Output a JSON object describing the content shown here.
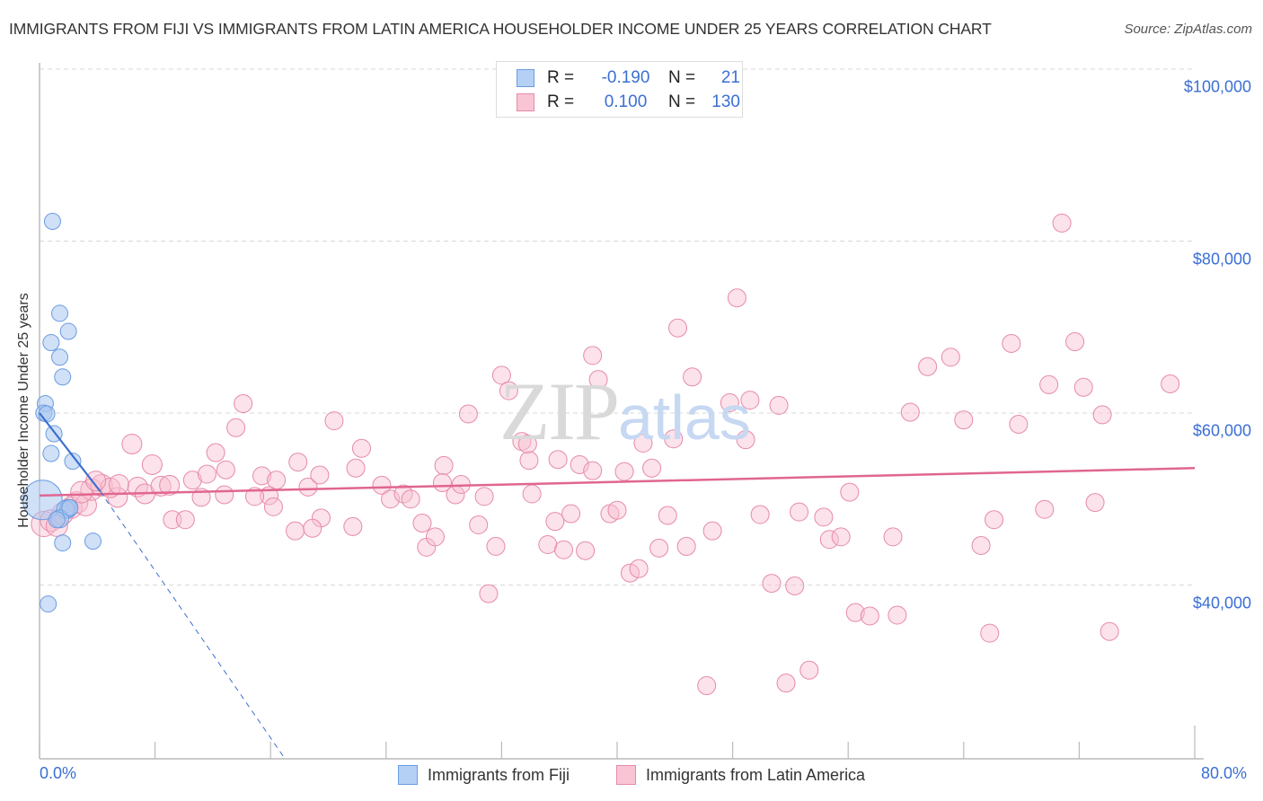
{
  "header": {
    "title": "IMMIGRANTS FROM FIJI VS IMMIGRANTS FROM LATIN AMERICA HOUSEHOLDER INCOME UNDER 25 YEARS CORRELATION CHART",
    "source": "Source: ZipAtlas.com"
  },
  "watermark": {
    "zip": "ZIP",
    "atlas": "atlas"
  },
  "stats_box": {
    "rows": [
      {
        "r_label": "R =",
        "r_value": "-0.190",
        "n_label": "N =",
        "n_value": "21",
        "color": "#b5d0f5",
        "border": "#6a9ce0"
      },
      {
        "r_label": "R =",
        "r_value": "0.100",
        "n_label": "N =",
        "n_value": "130",
        "color": "#f9c5d5",
        "border": "#e88aa8"
      }
    ]
  },
  "legend": {
    "items": [
      {
        "label": "Immigrants from Fiji",
        "color": "#b5d0f5",
        "border": "#6a9ce0"
      },
      {
        "label": "Immigrants from Latin America",
        "color": "#f9c5d5",
        "border": "#e88aa8"
      }
    ]
  },
  "colors": {
    "fiji_fill": "rgba(168,198,240,0.55)",
    "fiji_stroke": "#6a9ce0",
    "fiji_line": "#3a6fcf",
    "latam_fill": "rgba(248,190,208,0.45)",
    "latam_stroke": "#e68aa8",
    "latam_line": "#e06690",
    "axis_text": "#3b6fd4",
    "grid": "#d8d8d8"
  },
  "chart_data": {
    "type": "scatter",
    "title": "IMMIGRANTS FROM FIJI VS IMMIGRANTS FROM LATIN AMERICA HOUSEHOLDER INCOME UNDER 25 YEARS CORRELATION CHART",
    "xlabel": "",
    "ylabel": "Householder Income Under 25 years",
    "xlim": [
      0,
      80
    ],
    "ylim": [
      19800,
      102000
    ],
    "x_tick_labels": [
      "0.0%",
      "80.0%"
    ],
    "x_ticks": [
      0,
      8,
      16,
      24,
      32,
      40,
      48,
      56,
      64,
      72,
      80
    ],
    "y_ticks": [
      40000,
      60000,
      80000,
      100000
    ],
    "y_tick_labels": [
      "$40,000",
      "$60,000",
      "$80,000",
      "$100,000"
    ],
    "grid": true,
    "legend_position": "bottom",
    "series": [
      {
        "name": "Immigrants from Fiji",
        "r": -0.19,
        "n": 21,
        "trend": {
          "x0": 0,
          "y0": 60000,
          "x1": 4.2,
          "y1": 50900,
          "dashed_to_x": 17,
          "dashed_to_y": 19800
        },
        "points": [
          {
            "x": 0.9,
            "y": 82300,
            "s": 9
          },
          {
            "x": 1.4,
            "y": 71600,
            "s": 9
          },
          {
            "x": 2.0,
            "y": 69500,
            "s": 9
          },
          {
            "x": 0.8,
            "y": 68200,
            "s": 9
          },
          {
            "x": 1.4,
            "y": 66500,
            "s": 9
          },
          {
            "x": 1.6,
            "y": 64200,
            "s": 9
          },
          {
            "x": 0.4,
            "y": 61100,
            "s": 9
          },
          {
            "x": 0.3,
            "y": 60000,
            "s": 9
          },
          {
            "x": 0.5,
            "y": 59900,
            "s": 9
          },
          {
            "x": 1.0,
            "y": 57600,
            "s": 9
          },
          {
            "x": 0.8,
            "y": 55300,
            "s": 9
          },
          {
            "x": 2.3,
            "y": 54400,
            "s": 9
          },
          {
            "x": 0.2,
            "y": 49900,
            "s": 22
          },
          {
            "x": 2.0,
            "y": 48900,
            "s": 10
          },
          {
            "x": 1.8,
            "y": 48800,
            "s": 10
          },
          {
            "x": 1.4,
            "y": 47700,
            "s": 10
          },
          {
            "x": 1.2,
            "y": 47600,
            "s": 9
          },
          {
            "x": 1.6,
            "y": 44900,
            "s": 9
          },
          {
            "x": 3.7,
            "y": 45100,
            "s": 9
          },
          {
            "x": 0.6,
            "y": 37800,
            "s": 9
          },
          {
            "x": 2.1,
            "y": 49000,
            "s": 9
          }
        ]
      },
      {
        "name": "Immigrants from Latin America",
        "r": 0.1,
        "n": 130,
        "trend": {
          "x0": 0,
          "y0": 50400,
          "x1": 80,
          "y1": 53600
        },
        "points": [
          {
            "x": 0.3,
            "y": 47100,
            "s": 14
          },
          {
            "x": 0.8,
            "y": 47500,
            "s": 12
          },
          {
            "x": 1.6,
            "y": 48300,
            "s": 12
          },
          {
            "x": 2.2,
            "y": 49000,
            "s": 12
          },
          {
            "x": 2.6,
            "y": 49600,
            "s": 12
          },
          {
            "x": 3.2,
            "y": 49300,
            "s": 12
          },
          {
            "x": 3.6,
            "y": 51100,
            "s": 12
          },
          {
            "x": 4.3,
            "y": 51600,
            "s": 12
          },
          {
            "x": 5.4,
            "y": 50200,
            "s": 11
          },
          {
            "x": 4.9,
            "y": 51300,
            "s": 11
          },
          {
            "x": 5.5,
            "y": 51700,
            "s": 11
          },
          {
            "x": 6.4,
            "y": 56400,
            "s": 11
          },
          {
            "x": 6.8,
            "y": 51400,
            "s": 11
          },
          {
            "x": 7.3,
            "y": 50600,
            "s": 11
          },
          {
            "x": 7.8,
            "y": 54000,
            "s": 11
          },
          {
            "x": 8.4,
            "y": 51500,
            "s": 11
          },
          {
            "x": 9.0,
            "y": 51600,
            "s": 11
          },
          {
            "x": 9.2,
            "y": 47600,
            "s": 10
          },
          {
            "x": 10.1,
            "y": 47600,
            "s": 10
          },
          {
            "x": 10.6,
            "y": 52200,
            "s": 10
          },
          {
            "x": 11.2,
            "y": 50200,
            "s": 10
          },
          {
            "x": 11.6,
            "y": 52900,
            "s": 10
          },
          {
            "x": 12.2,
            "y": 55400,
            "s": 10
          },
          {
            "x": 12.9,
            "y": 53400,
            "s": 10
          },
          {
            "x": 13.6,
            "y": 58300,
            "s": 10
          },
          {
            "x": 14.1,
            "y": 61100,
            "s": 10
          },
          {
            "x": 15.4,
            "y": 52700,
            "s": 10
          },
          {
            "x": 15.9,
            "y": 50400,
            "s": 10
          },
          {
            "x": 16.2,
            "y": 49100,
            "s": 10
          },
          {
            "x": 17.9,
            "y": 54300,
            "s": 10
          },
          {
            "x": 18.6,
            "y": 51400,
            "s": 10
          },
          {
            "x": 19.4,
            "y": 52800,
            "s": 10
          },
          {
            "x": 19.5,
            "y": 47800,
            "s": 10
          },
          {
            "x": 17.7,
            "y": 46300,
            "s": 10
          },
          {
            "x": 18.9,
            "y": 46600,
            "s": 10
          },
          {
            "x": 20.4,
            "y": 59100,
            "s": 10
          },
          {
            "x": 22.3,
            "y": 55900,
            "s": 10
          },
          {
            "x": 21.9,
            "y": 53600,
            "s": 10
          },
          {
            "x": 23.7,
            "y": 51600,
            "s": 10
          },
          {
            "x": 24.3,
            "y": 50000,
            "s": 10
          },
          {
            "x": 25.2,
            "y": 50600,
            "s": 10
          },
          {
            "x": 26.5,
            "y": 47200,
            "s": 10
          },
          {
            "x": 26.8,
            "y": 44400,
            "s": 10
          },
          {
            "x": 27.4,
            "y": 45600,
            "s": 10
          },
          {
            "x": 28.0,
            "y": 53900,
            "s": 10
          },
          {
            "x": 28.8,
            "y": 50500,
            "s": 10
          },
          {
            "x": 29.2,
            "y": 51700,
            "s": 10
          },
          {
            "x": 29.7,
            "y": 59900,
            "s": 10
          },
          {
            "x": 30.4,
            "y": 47000,
            "s": 10
          },
          {
            "x": 30.8,
            "y": 50300,
            "s": 10
          },
          {
            "x": 31.1,
            "y": 39000,
            "s": 10
          },
          {
            "x": 31.6,
            "y": 44500,
            "s": 10
          },
          {
            "x": 32.0,
            "y": 64400,
            "s": 10
          },
          {
            "x": 32.5,
            "y": 62600,
            "s": 10
          },
          {
            "x": 33.4,
            "y": 56700,
            "s": 10
          },
          {
            "x": 33.9,
            "y": 54500,
            "s": 10
          },
          {
            "x": 33.8,
            "y": 56400,
            "s": 10
          },
          {
            "x": 34.1,
            "y": 50600,
            "s": 10
          },
          {
            "x": 35.2,
            "y": 44700,
            "s": 10
          },
          {
            "x": 35.7,
            "y": 47400,
            "s": 10
          },
          {
            "x": 36.3,
            "y": 44100,
            "s": 10
          },
          {
            "x": 35.9,
            "y": 54600,
            "s": 10
          },
          {
            "x": 36.8,
            "y": 48300,
            "s": 10
          },
          {
            "x": 37.4,
            "y": 54000,
            "s": 10
          },
          {
            "x": 38.3,
            "y": 66700,
            "s": 10
          },
          {
            "x": 38.7,
            "y": 63900,
            "s": 10
          },
          {
            "x": 38.3,
            "y": 53300,
            "s": 10
          },
          {
            "x": 39.5,
            "y": 48300,
            "s": 10
          },
          {
            "x": 40.0,
            "y": 48700,
            "s": 10
          },
          {
            "x": 40.5,
            "y": 53200,
            "s": 10
          },
          {
            "x": 40.9,
            "y": 41400,
            "s": 10
          },
          {
            "x": 41.5,
            "y": 41900,
            "s": 10
          },
          {
            "x": 41.8,
            "y": 56500,
            "s": 10
          },
          {
            "x": 42.4,
            "y": 53600,
            "s": 10
          },
          {
            "x": 42.9,
            "y": 44300,
            "s": 10
          },
          {
            "x": 43.5,
            "y": 48100,
            "s": 10
          },
          {
            "x": 43.9,
            "y": 57000,
            "s": 10
          },
          {
            "x": 44.2,
            "y": 69900,
            "s": 10
          },
          {
            "x": 44.8,
            "y": 44500,
            "s": 10
          },
          {
            "x": 45.2,
            "y": 64200,
            "s": 10
          },
          {
            "x": 46.2,
            "y": 28300,
            "s": 10
          },
          {
            "x": 46.6,
            "y": 46300,
            "s": 10
          },
          {
            "x": 47.8,
            "y": 61200,
            "s": 10
          },
          {
            "x": 48.3,
            "y": 73400,
            "s": 10
          },
          {
            "x": 48.9,
            "y": 56900,
            "s": 10
          },
          {
            "x": 49.2,
            "y": 61500,
            "s": 10
          },
          {
            "x": 49.9,
            "y": 48200,
            "s": 10
          },
          {
            "x": 50.7,
            "y": 40200,
            "s": 10
          },
          {
            "x": 51.2,
            "y": 60900,
            "s": 10
          },
          {
            "x": 51.7,
            "y": 28600,
            "s": 10
          },
          {
            "x": 52.3,
            "y": 39900,
            "s": 10
          },
          {
            "x": 52.6,
            "y": 48500,
            "s": 10
          },
          {
            "x": 53.3,
            "y": 30100,
            "s": 10
          },
          {
            "x": 54.3,
            "y": 47900,
            "s": 10
          },
          {
            "x": 54.7,
            "y": 45300,
            "s": 10
          },
          {
            "x": 55.5,
            "y": 45600,
            "s": 10
          },
          {
            "x": 56.1,
            "y": 50800,
            "s": 10
          },
          {
            "x": 56.5,
            "y": 36800,
            "s": 10
          },
          {
            "x": 57.5,
            "y": 36400,
            "s": 10
          },
          {
            "x": 59.1,
            "y": 45600,
            "s": 10
          },
          {
            "x": 59.4,
            "y": 36500,
            "s": 10
          },
          {
            "x": 60.3,
            "y": 60100,
            "s": 10
          },
          {
            "x": 61.5,
            "y": 65400,
            "s": 10
          },
          {
            "x": 63.1,
            "y": 66500,
            "s": 10
          },
          {
            "x": 64.0,
            "y": 59200,
            "s": 10
          },
          {
            "x": 65.2,
            "y": 44600,
            "s": 10
          },
          {
            "x": 65.8,
            "y": 34400,
            "s": 10
          },
          {
            "x": 66.1,
            "y": 47600,
            "s": 10
          },
          {
            "x": 67.3,
            "y": 68100,
            "s": 10
          },
          {
            "x": 67.8,
            "y": 58700,
            "s": 10
          },
          {
            "x": 69.9,
            "y": 63300,
            "s": 10
          },
          {
            "x": 69.6,
            "y": 48800,
            "s": 10
          },
          {
            "x": 70.8,
            "y": 82100,
            "s": 10
          },
          {
            "x": 71.7,
            "y": 68300,
            "s": 10
          },
          {
            "x": 72.3,
            "y": 63000,
            "s": 10
          },
          {
            "x": 73.1,
            "y": 49600,
            "s": 10
          },
          {
            "x": 73.6,
            "y": 59800,
            "s": 10
          },
          {
            "x": 74.1,
            "y": 34600,
            "s": 10
          },
          {
            "x": 78.3,
            "y": 63400,
            "s": 10
          },
          {
            "x": 2.9,
            "y": 50800,
            "s": 12
          },
          {
            "x": 1.2,
            "y": 46900,
            "s": 12
          },
          {
            "x": 3.9,
            "y": 52100,
            "s": 11
          },
          {
            "x": 14.9,
            "y": 50300,
            "s": 10
          },
          {
            "x": 21.7,
            "y": 46800,
            "s": 10
          },
          {
            "x": 12.8,
            "y": 50500,
            "s": 10
          },
          {
            "x": 25.7,
            "y": 50000,
            "s": 10
          },
          {
            "x": 27.9,
            "y": 51900,
            "s": 10
          },
          {
            "x": 37.8,
            "y": 44000,
            "s": 10
          },
          {
            "x": 16.4,
            "y": 52200,
            "s": 10
          }
        ]
      }
    ]
  }
}
